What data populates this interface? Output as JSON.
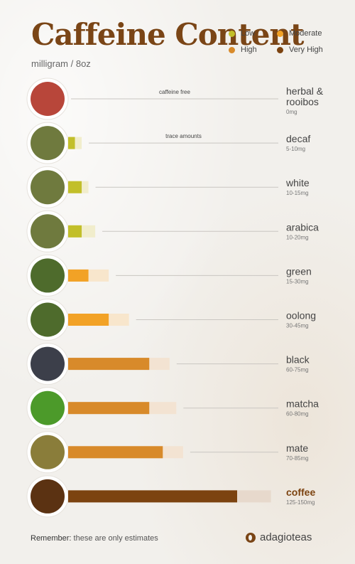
{
  "header": {
    "title": "Caffeine Content",
    "subtitle": "milligram / 8oz"
  },
  "legend": [
    {
      "label": "Low",
      "color": "#c2bf2a"
    },
    {
      "label": "Moderate",
      "color": "#f2a226"
    },
    {
      "label": "High",
      "color": "#d88a2a"
    },
    {
      "label": "Very High",
      "color": "#7c4310"
    }
  ],
  "footer": {
    "note_emph": "Remember:",
    "note_rest": " these are only estimates",
    "brand": "adagioteas"
  },
  "chart_data": {
    "type": "bar",
    "orientation": "horizontal",
    "unit": "mg",
    "xlim": [
      0,
      150
    ],
    "grid": false,
    "legend_position": "top-right",
    "rows": [
      {
        "name": "herbal & rooibos",
        "range": "0mg",
        "min": 0,
        "max": 0,
        "level": "none",
        "annotation": "caffeine free",
        "icon": "herbal-tea-icon"
      },
      {
        "name": "decaf",
        "range": "5-10mg",
        "min": 5,
        "max": 10,
        "level": "Low",
        "annotation": "trace amounts",
        "icon": "decaf-tea-icon"
      },
      {
        "name": "white",
        "range": "10-15mg",
        "min": 10,
        "max": 15,
        "level": "Low",
        "annotation": "",
        "icon": "white-tea-icon"
      },
      {
        "name": "arabica",
        "range": "10-20mg",
        "min": 10,
        "max": 20,
        "level": "Low",
        "annotation": "",
        "icon": "arabica-tea-icon"
      },
      {
        "name": "green",
        "range": "15-30mg",
        "min": 15,
        "max": 30,
        "level": "Moderate",
        "annotation": "",
        "icon": "green-tea-icon"
      },
      {
        "name": "oolong",
        "range": "30-45mg",
        "min": 30,
        "max": 45,
        "level": "Moderate",
        "annotation": "",
        "icon": "oolong-tea-icon"
      },
      {
        "name": "black",
        "range": "60-75mg",
        "min": 60,
        "max": 75,
        "level": "High",
        "annotation": "",
        "icon": "black-tea-icon"
      },
      {
        "name": "matcha",
        "range": "60-80mg",
        "min": 60,
        "max": 80,
        "level": "High",
        "annotation": "",
        "icon": "matcha-icon"
      },
      {
        "name": "mate",
        "range": "70-85mg",
        "min": 70,
        "max": 85,
        "level": "High",
        "annotation": "",
        "icon": "mate-icon"
      },
      {
        "name": "coffee",
        "range": "125-150mg",
        "min": 125,
        "max": 150,
        "level": "Very High",
        "annotation": "",
        "icon": "coffee-beans-icon"
      }
    ]
  }
}
